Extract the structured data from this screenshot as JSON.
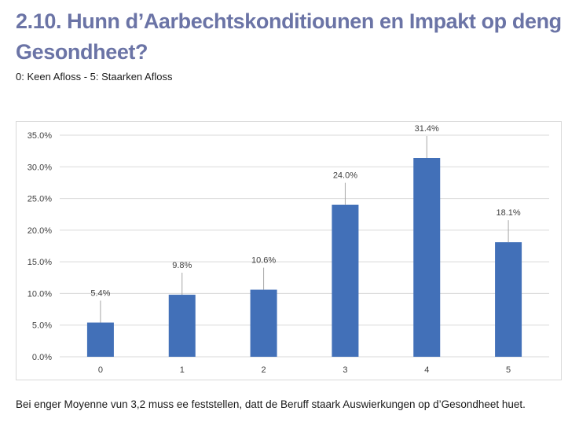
{
  "header": {
    "title": "2.10. Hunn d’Aarbechtskonditiounen en Impakt op deng Gesondheet?",
    "subtitle": "0: Keen Afloss - 5: Staarken Afloss"
  },
  "footer": {
    "text": "Bei enger Moyenne vun 3,2 muss ee feststellen, datt de Beruff staark Auswierkungen op d’Gesondheet huet."
  },
  "colors": {
    "bar": "#4270b8",
    "title": "#6b74a6",
    "grid": "#d9d9d9"
  },
  "chart_data": {
    "type": "bar",
    "categories": [
      "0",
      "1",
      "2",
      "3",
      "4",
      "5"
    ],
    "values": [
      5.4,
      9.8,
      10.6,
      24.0,
      31.4,
      18.1
    ],
    "data_labels": [
      "5.4%",
      "9.8%",
      "10.6%",
      "24.0%",
      "31.4%",
      "18.1%"
    ],
    "y_ticks": [
      0,
      5,
      10,
      15,
      20,
      25,
      30,
      35
    ],
    "y_tick_labels": [
      "0.0%",
      "5.0%",
      "10.0%",
      "15.0%",
      "20.0%",
      "25.0%",
      "30.0%",
      "35.0%"
    ],
    "ylim": [
      0,
      35
    ],
    "grid": true,
    "legend": "none"
  }
}
